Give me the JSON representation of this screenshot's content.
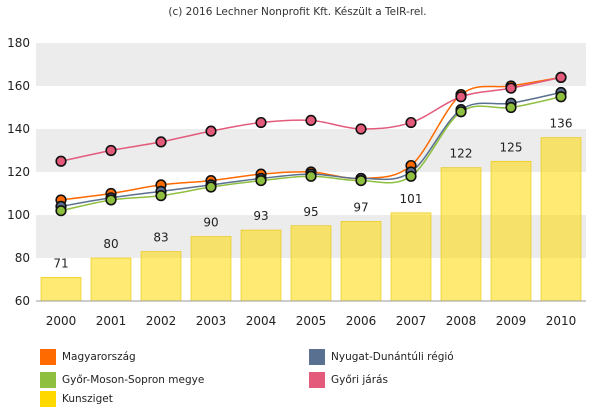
{
  "credit": "(c) 2016 Lechner Nonprofit Kft. Készült a TeIR-rel.",
  "chart_data": {
    "type": "bar+line",
    "categories": [
      "2000",
      "2001",
      "2002",
      "2003",
      "2004",
      "2005",
      "2006",
      "2007",
      "2008",
      "2009",
      "2010"
    ],
    "ylim": [
      60,
      180
    ],
    "yticks": [
      60,
      80,
      100,
      120,
      140,
      160,
      180
    ],
    "grid": "alternating horizontal bands",
    "bar_series": {
      "name": "Kunsziget",
      "color": "#ffd800",
      "values": [
        71,
        80,
        83,
        90,
        93,
        95,
        97,
        101,
        122,
        125,
        136
      ],
      "labels": [
        "71",
        "80",
        "83",
        "90",
        "93",
        "95",
        "97",
        "101",
        "122",
        "125",
        "136"
      ]
    },
    "line_series": [
      {
        "name": "Magyarország",
        "color": "#ff6a00",
        "values": [
          107,
          110,
          114,
          116,
          119,
          120,
          117,
          123,
          156,
          160,
          164
        ]
      },
      {
        "name": "Nyugat-Dunántúli régió",
        "color": "#5a7090",
        "values": [
          104,
          108,
          111,
          114,
          117,
          119,
          117,
          120,
          149,
          152,
          157
        ]
      },
      {
        "name": "Győr-Moson-Sopron megye",
        "color": "#8fbf3f",
        "values": [
          102,
          107,
          109,
          113,
          116,
          118,
          116,
          118,
          148,
          150,
          155
        ]
      },
      {
        "name": "Győri járás",
        "color": "#e35a7a",
        "values": [
          125,
          130,
          134,
          139,
          143,
          144,
          140,
          143,
          155,
          159,
          164
        ]
      }
    ]
  },
  "legend": [
    {
      "label": "Magyarország",
      "color": "#ff6a00"
    },
    {
      "label": "Nyugat-Dunántúli régió",
      "color": "#5a7090"
    },
    {
      "label": "Győr-Moson-Sopron megye",
      "color": "#8fbf3f"
    },
    {
      "label": "Győri járás",
      "color": "#e35a7a"
    },
    {
      "label": "Kunsziget",
      "color": "#ffd800"
    }
  ]
}
